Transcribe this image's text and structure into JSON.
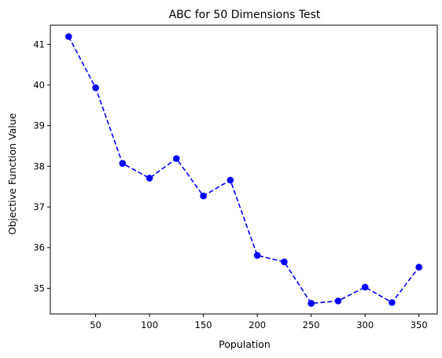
{
  "chart_data": {
    "type": "line",
    "title": "ABC for 50 Dimensions Test",
    "xlabel": "Population",
    "ylabel": "Objective Function Value",
    "xlim": [
      8,
      367
    ],
    "ylim": [
      34.37,
      41.47
    ],
    "xticks": [
      50,
      100,
      150,
      200,
      250,
      300,
      350
    ],
    "yticks": [
      35,
      36,
      37,
      38,
      39,
      40,
      41
    ],
    "grid": false,
    "series": [
      {
        "color": "#0000ff",
        "line_style": "dashed",
        "marker": "circle",
        "x": [
          25,
          50,
          75,
          100,
          125,
          150,
          175,
          200,
          225,
          250,
          275,
          300,
          325,
          350
        ],
        "y": [
          41.19,
          39.93,
          38.07,
          37.71,
          38.19,
          37.27,
          37.66,
          35.81,
          35.65,
          34.63,
          34.69,
          35.03,
          34.65,
          35.52
        ]
      }
    ]
  }
}
